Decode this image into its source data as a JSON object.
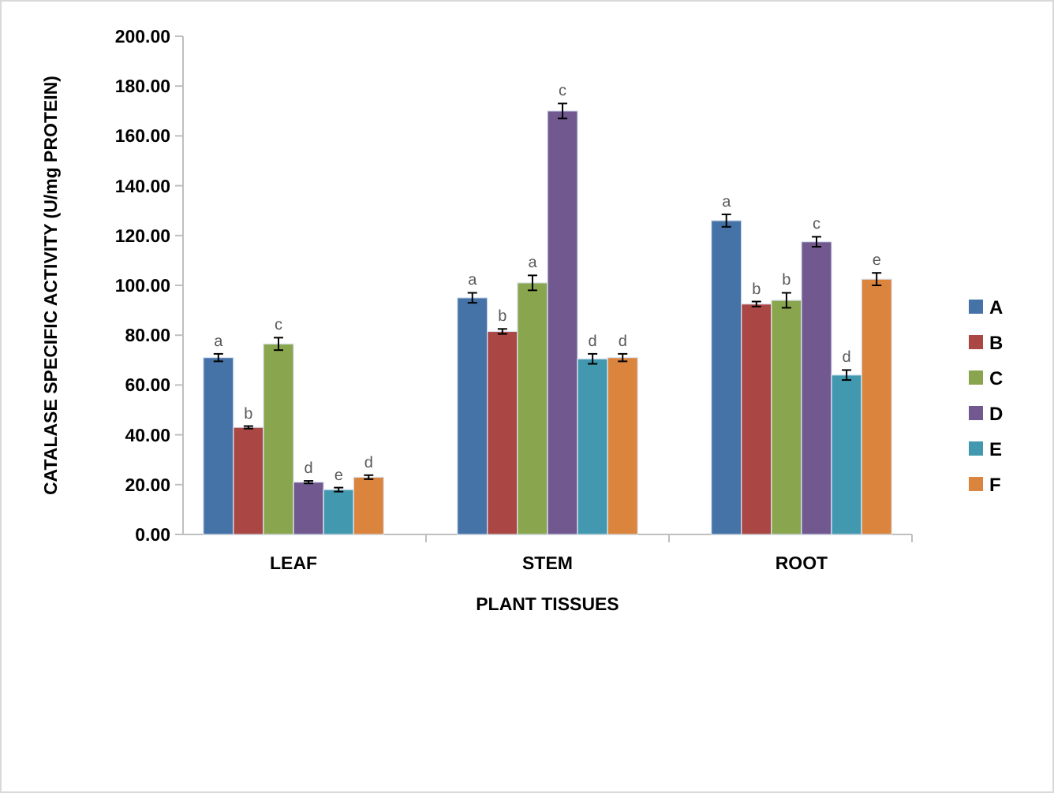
{
  "chart_data": {
    "type": "bar",
    "xlabel": "PLANT TISSUES",
    "ylabel": "CATALASE SPECIFIC ACTIVITY (U/mg PROTEIN)",
    "categories": [
      "LEAF",
      "STEM",
      "ROOT"
    ],
    "ylim": [
      0,
      200
    ],
    "yticks": [
      {
        "value": 0,
        "label": "0.00"
      },
      {
        "value": 20,
        "label": "20.00"
      },
      {
        "value": 40,
        "label": "40.00"
      },
      {
        "value": 60,
        "label": "60.00"
      },
      {
        "value": 80,
        "label": "80.00"
      },
      {
        "value": 100,
        "label": "100.00"
      },
      {
        "value": 120,
        "label": "120.00"
      },
      {
        "value": 140,
        "label": "140.00"
      },
      {
        "value": 160,
        "label": "160.00"
      },
      {
        "value": 180,
        "label": "180.00"
      },
      {
        "value": 200,
        "label": "200.00"
      }
    ],
    "grid": false,
    "legend": "right",
    "series": [
      {
        "name": "A",
        "color": "#4572a7",
        "values": [
          71,
          95,
          126
        ],
        "errors": [
          1.5,
          2,
          2.5
        ],
        "value_labels": [
          "a",
          "a",
          "a"
        ]
      },
      {
        "name": "B",
        "color": "#aa4643",
        "values": [
          43,
          81.5,
          92.5
        ],
        "errors": [
          0.5,
          1,
          1
        ],
        "value_labels": [
          "b",
          "b",
          "b"
        ]
      },
      {
        "name": "C",
        "color": "#89a54e",
        "values": [
          76.5,
          101,
          94
        ],
        "errors": [
          2.5,
          3,
          3
        ],
        "value_labels": [
          "c",
          "a",
          "b"
        ]
      },
      {
        "name": "D",
        "color": "#71588f",
        "values": [
          21,
          170,
          117.5
        ],
        "errors": [
          0.5,
          3,
          2
        ],
        "value_labels": [
          "d",
          "c",
          "c"
        ]
      },
      {
        "name": "E",
        "color": "#4198af",
        "values": [
          18,
          70.5,
          64
        ],
        "errors": [
          0.8,
          2,
          2
        ],
        "value_labels": [
          "e",
          "d",
          "d"
        ]
      },
      {
        "name": "F",
        "color": "#db843d",
        "values": [
          23,
          71,
          102.5
        ],
        "errors": [
          0.8,
          1.5,
          2.5
        ],
        "value_labels": [
          "d",
          "d",
          "e"
        ]
      }
    ]
  }
}
